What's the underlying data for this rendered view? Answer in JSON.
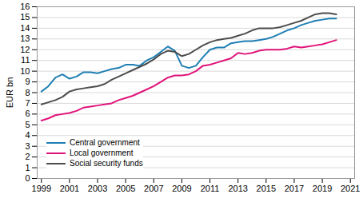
{
  "chart_data": {
    "type": "line",
    "y_label": "EUR bn",
    "x": [
      1999,
      1999.5,
      2000,
      2000.5,
      2001,
      2001.5,
      2002,
      2002.5,
      2003,
      2003.5,
      2004,
      2004.5,
      2005,
      2005.5,
      2006,
      2006.5,
      2007,
      2007.5,
      2008,
      2008.5,
      2009,
      2009.5,
      2010,
      2010.5,
      2011,
      2011.5,
      2012,
      2012.5,
      2013,
      2013.5,
      2014,
      2014.5,
      2015,
      2015.5,
      2016,
      2016.5,
      2017,
      2017.5,
      2018,
      2018.5,
      2019,
      2019.5,
      2020
    ],
    "series": [
      {
        "name": "Central government",
        "color": "#1f7fb4",
        "values": [
          8.1,
          8.6,
          9.4,
          9.7,
          9.3,
          9.5,
          9.9,
          9.9,
          9.8,
          10.0,
          10.2,
          10.3,
          10.6,
          10.6,
          10.5,
          11.0,
          11.3,
          11.8,
          12.3,
          11.9,
          10.5,
          10.3,
          10.5,
          11.3,
          12.0,
          12.2,
          12.2,
          12.6,
          12.7,
          12.8,
          12.8,
          12.9,
          13.0,
          13.2,
          13.5,
          13.8,
          14.0,
          14.3,
          14.5,
          14.7,
          14.8,
          14.9,
          14.9
        ]
      },
      {
        "name": "Local government",
        "color": "#e0137a",
        "values": [
          5.4,
          5.6,
          5.9,
          6.0,
          6.1,
          6.3,
          6.6,
          6.7,
          6.8,
          6.9,
          7.0,
          7.3,
          7.5,
          7.7,
          8.0,
          8.3,
          8.6,
          9.0,
          9.4,
          9.6,
          9.6,
          9.7,
          10.0,
          10.5,
          10.6,
          10.8,
          11.0,
          11.2,
          11.7,
          11.6,
          11.7,
          11.9,
          12.0,
          12.0,
          12.0,
          12.1,
          12.3,
          12.2,
          12.3,
          12.4,
          12.5,
          12.7,
          12.9
        ]
      },
      {
        "name": "Social security funds",
        "color": "#4d4d4d",
        "values": [
          6.9,
          7.1,
          7.3,
          7.6,
          8.1,
          8.3,
          8.4,
          8.5,
          8.6,
          8.8,
          9.2,
          9.5,
          9.8,
          10.1,
          10.4,
          10.7,
          11.1,
          11.6,
          11.9,
          11.8,
          11.4,
          11.6,
          12.0,
          12.4,
          12.7,
          12.9,
          13.0,
          13.1,
          13.3,
          13.5,
          13.8,
          14.0,
          14.0,
          14.0,
          14.1,
          14.3,
          14.5,
          14.7,
          15.0,
          15.3,
          15.4,
          15.4,
          15.3
        ]
      }
    ],
    "xlim": [
      1998.7,
      2021.3
    ],
    "xticks": [
      1999,
      2001,
      2003,
      2005,
      2007,
      2009,
      2011,
      2013,
      2015,
      2017,
      2019,
      2021
    ],
    "ylim": [
      0,
      16
    ],
    "yticks": [
      0,
      1,
      2,
      3,
      4,
      5,
      6,
      7,
      8,
      9,
      10,
      11,
      12,
      13,
      14,
      15,
      16
    ],
    "grid": true,
    "legend": "lower left"
  }
}
